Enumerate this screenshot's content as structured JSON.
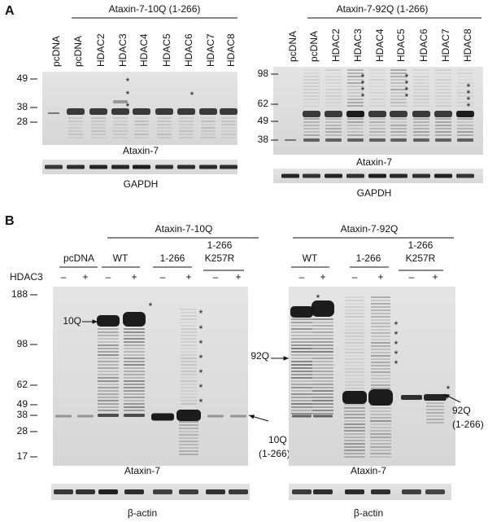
{
  "panel_a": {
    "label": "A",
    "left": {
      "title": "Ataxin-7-10Q (1-266)",
      "lanes": [
        "pcDNA",
        "pcDNA",
        "HDAC2",
        "HDAC3",
        "HDAC4",
        "HDAC5",
        "HDAC6",
        "HDAC7",
        "HDAC8"
      ],
      "mw_markers": [
        49,
        38,
        28
      ],
      "asterisks": [
        "*",
        "*",
        "*",
        "*"
      ],
      "blot_label": "Ataxin-7",
      "loading_label": "GAPDH"
    },
    "right": {
      "title": "Ataxin-7-92Q (1-266)",
      "lanes": [
        "pcDNA",
        "pcDNA",
        "HDAC2",
        "HDAC3",
        "HDAC4",
        "HDAC5",
        "HDAC6",
        "HDAC7",
        "HDAC8"
      ],
      "mw_markers": [
        98,
        62,
        49,
        38
      ],
      "asterisks": [
        "*",
        "*",
        "*",
        "*",
        "*",
        "*",
        "*",
        "*",
        "*",
        "*",
        "*",
        "*"
      ],
      "blot_label": "Ataxin-7",
      "loading_label": "GAPDH"
    }
  },
  "panel_b": {
    "label": "B",
    "treatment_label": "HDAC3",
    "left": {
      "title": "Ataxin-7-10Q",
      "groups": [
        {
          "name_lines": [
            "pcDNA"
          ],
          "signs": [
            "–",
            "+"
          ]
        },
        {
          "name_lines": [
            "WT"
          ],
          "signs": [
            "–",
            "+"
          ]
        },
        {
          "name_lines": [
            "1-266"
          ],
          "signs": [
            "–",
            "+"
          ]
        },
        {
          "name_lines": [
            "1-266",
            "K257R"
          ],
          "signs": [
            "–",
            "+"
          ]
        }
      ],
      "mw_markers": [
        188,
        98,
        62,
        49,
        38,
        28,
        17
      ],
      "asterisks": [
        "*",
        "*",
        "*",
        "*",
        "*",
        "*",
        "*",
        "*"
      ],
      "arrow_labels": [
        {
          "lines": [
            "10Q"
          ]
        },
        {
          "lines": [
            "10Q",
            "(1-266)"
          ]
        }
      ],
      "blot_label": "Ataxin-7",
      "loading_label": "β-actin"
    },
    "right": {
      "title": "Ataxin-7-92Q",
      "groups": [
        {
          "name_lines": [
            "WT"
          ],
          "signs": [
            "–",
            "+"
          ]
        },
        {
          "name_lines": [
            "1-266"
          ],
          "signs": [
            "–",
            "+"
          ]
        },
        {
          "name_lines": [
            "1-266",
            "K257R"
          ],
          "signs": [
            "–",
            "+"
          ]
        }
      ],
      "asterisks": [
        "*",
        "*",
        "*",
        "*",
        "*",
        "*",
        "*"
      ],
      "arrow_labels": [
        {
          "lines": [
            "92Q"
          ]
        },
        {
          "lines": [
            "92Q",
            "(1-266)"
          ]
        }
      ],
      "blot_label": "Ataxin-7",
      "loading_label": "β-actin"
    }
  }
}
